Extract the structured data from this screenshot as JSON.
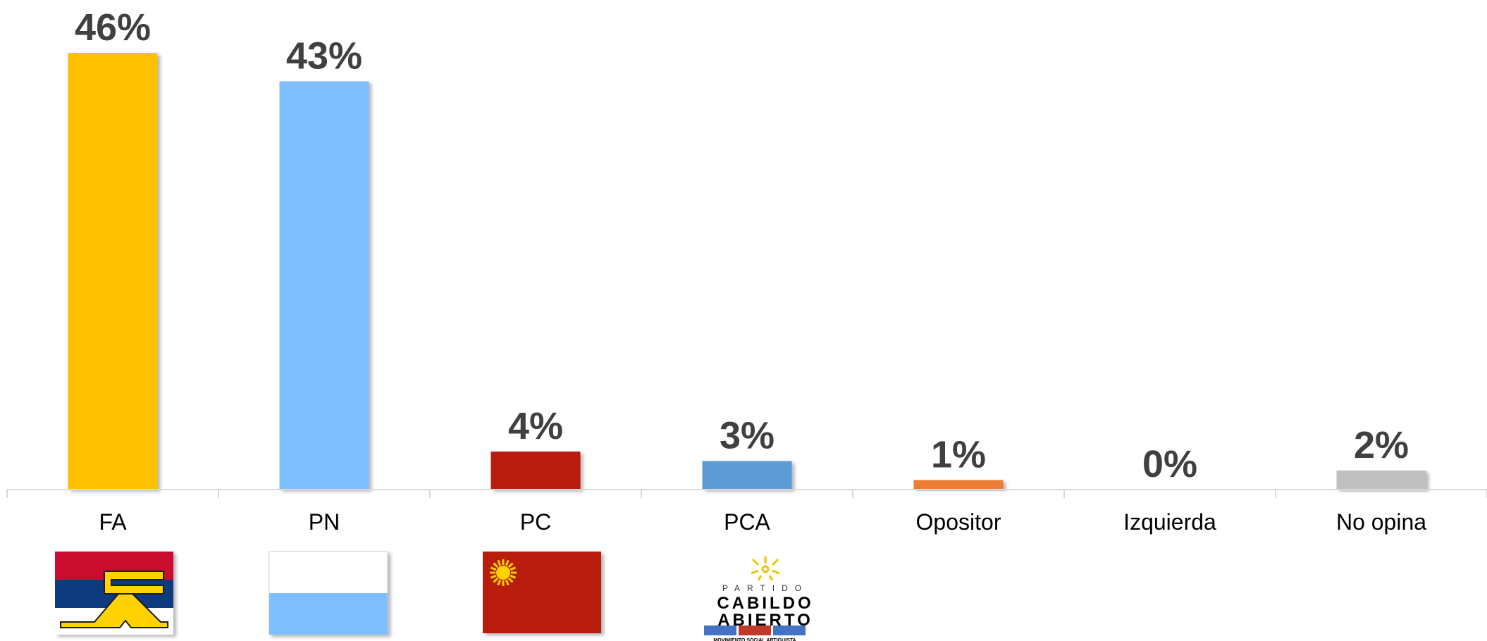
{
  "chart_data": {
    "type": "bar",
    "title": "",
    "xlabel": "",
    "ylabel": "",
    "ylim": [
      0,
      46
    ],
    "grid": false,
    "legend": "none",
    "categories": [
      "FA",
      "PN",
      "PC",
      "PCA",
      "Opositor",
      "Izquierda",
      "No opina"
    ],
    "values": [
      46,
      43,
      4,
      3,
      1,
      0,
      2
    ],
    "data_labels": [
      "46%",
      "43%",
      "4%",
      "3%",
      "1%",
      "0%",
      "2%"
    ],
    "colors": [
      "#FFC000",
      "#7FBFFF",
      "#B81C0C",
      "#5B9BD5",
      "#ED7D31",
      "#A5A5A5",
      "#BFBFBF"
    ],
    "axis_color": "#D9D9D9"
  },
  "logos": [
    {
      "category": "FA",
      "icon": "frente-amplio-flag-icon",
      "colors": [
        "#C8102E",
        "#0F3A7D",
        "#FFFFFF",
        "#FFD200"
      ]
    },
    {
      "category": "PN",
      "icon": "partido-nacional-flag-icon",
      "colors": [
        "#FFFFFF",
        "#7FBFFF"
      ]
    },
    {
      "category": "PC",
      "icon": "partido-colorado-flag-icon",
      "colors": [
        "#B81C0C",
        "#FFD200"
      ]
    },
    {
      "category": "PCA",
      "icon": "cabildo-abierto-logo-icon",
      "colors": [
        "#F2C200",
        "#000000",
        "#4472C4",
        "#C0392B"
      ],
      "text": [
        "PARTIDO",
        "CABILDO",
        "ABIERTO",
        "MOVIMIENTO SOCIAL ARTIGUISTA"
      ]
    }
  ]
}
